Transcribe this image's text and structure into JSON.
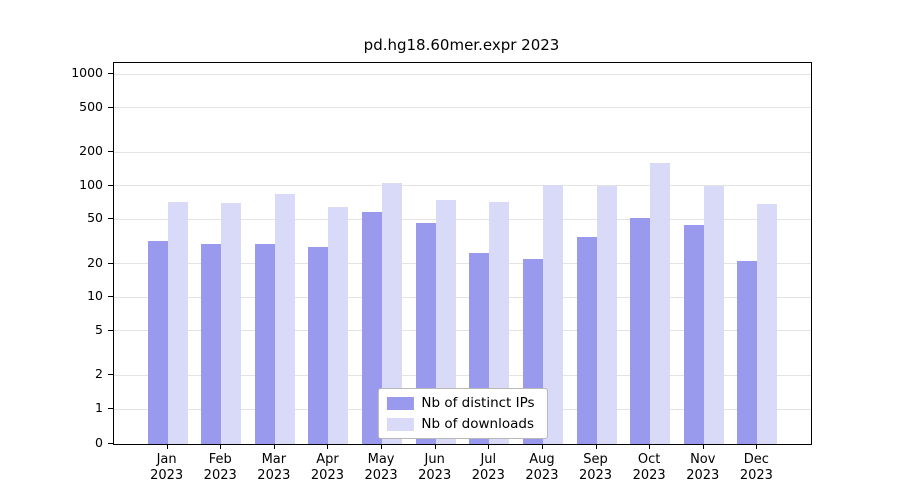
{
  "title": "pd.hg18.60mer.expr 2023",
  "colors": {
    "distinct_ips": "#9999ee",
    "downloads": "#d9d9f8",
    "grid": "#e3e3e3",
    "axis": "#000000",
    "background": "#ffffff"
  },
  "legend": {
    "items": [
      {
        "label": "Nb of distinct IPs",
        "series": "distinct_ips"
      },
      {
        "label": "Nb of downloads",
        "series": "downloads"
      }
    ]
  },
  "chart_data": {
    "type": "bar",
    "scale": "symlog",
    "title": "pd.hg18.60mer.expr 2023",
    "xlabel": "",
    "ylabel": "",
    "ylim": [
      0,
      1000
    ],
    "yticks": [
      0,
      1,
      2,
      5,
      10,
      20,
      50,
      100,
      200,
      500,
      1000
    ],
    "grid": true,
    "legend_position": "bottom-center-inside",
    "categories": [
      "Jan",
      "Feb",
      "Mar",
      "Apr",
      "May",
      "Jun",
      "Jul",
      "Aug",
      "Sep",
      "Oct",
      "Nov",
      "Dec"
    ],
    "year": "2023",
    "series": [
      {
        "name": "Nb of distinct IPs",
        "color": "#9999ee",
        "values": [
          32,
          30,
          30,
          28,
          58,
          46,
          25,
          22,
          35,
          51,
          44,
          21
        ]
      },
      {
        "name": "Nb of downloads",
        "color": "#d9d9f8",
        "values": [
          72,
          70,
          84,
          65,
          105,
          74,
          71,
          101,
          100,
          160,
          100,
          69
        ]
      }
    ]
  }
}
